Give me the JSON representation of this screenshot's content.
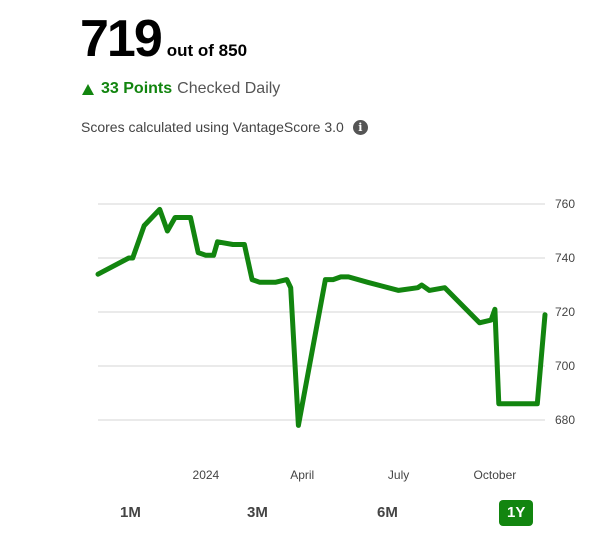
{
  "score": {
    "value": "719",
    "out_of": "out of 850"
  },
  "change": {
    "points": "33 Points",
    "label": "Checked Daily",
    "direction": "up",
    "color": "#12850f"
  },
  "basis": {
    "text": "Scores calculated using VantageScore 3.0",
    "icon": "info-icon"
  },
  "chart_data": {
    "type": "line",
    "ylim": [
      670,
      765
    ],
    "y_ticks": [
      760,
      740,
      720,
      700,
      680
    ],
    "x_ticks": [
      {
        "label": "2024",
        "x": 2024.0
      },
      {
        "label": "April",
        "x": 2024.25
      },
      {
        "label": "July",
        "x": 2024.5
      },
      {
        "label": "October",
        "x": 2024.75
      }
    ],
    "grid": true,
    "series": [
      {
        "color": "#12850f",
        "x": [
          2023.72,
          2023.8,
          2023.81,
          2023.84,
          2023.88,
          2023.9,
          2023.92,
          2023.96,
          2023.98,
          2024.0,
          2024.02,
          2024.03,
          2024.07,
          2024.08,
          2024.1,
          2024.12,
          2024.14,
          2024.18,
          2024.21,
          2024.22,
          2024.24,
          2024.31,
          2024.33,
          2024.35,
          2024.37,
          2024.42,
          2024.5,
          2024.55,
          2024.56,
          2024.58,
          2024.62,
          2024.71,
          2024.74,
          2024.75,
          2024.76,
          2024.86,
          2024.88
        ],
        "values": [
          734,
          740,
          740,
          752,
          758,
          750,
          755,
          755,
          742,
          741,
          741,
          746,
          745,
          745,
          745,
          732,
          731,
          731,
          732,
          729,
          678,
          732,
          732,
          733,
          733,
          731,
          728,
          729,
          730,
          728,
          729,
          716,
          717,
          721,
          686,
          686,
          719
        ]
      }
    ]
  },
  "ranges": {
    "items": [
      {
        "label": "1M",
        "active": false
      },
      {
        "label": "3M",
        "active": false
      },
      {
        "label": "6M",
        "active": false
      },
      {
        "label": "1Y",
        "active": true
      }
    ]
  }
}
